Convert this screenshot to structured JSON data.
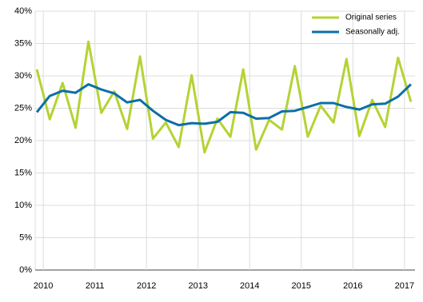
{
  "chart_data": {
    "type": "line",
    "categories": [
      "2010",
      null,
      null,
      null,
      "2011",
      null,
      null,
      null,
      "2012",
      null,
      null,
      null,
      "2013",
      null,
      null,
      null,
      "2014",
      null,
      null,
      null,
      "2015",
      null,
      null,
      null,
      "2016",
      null,
      null,
      null,
      "2017",
      null
    ],
    "series": [
      {
        "name": "Original series",
        "color": "#b4d334",
        "values": [
          31,
          23.3,
          28.9,
          22,
          35.3,
          24.3,
          27.6,
          21.8,
          33,
          20.3,
          22.8,
          19,
          30.1,
          18.2,
          23.4,
          20.6,
          31,
          18.6,
          23.2,
          21.7,
          31.5,
          20.6,
          25.4,
          22.8,
          32.6,
          20.7,
          26.3,
          22.1,
          32.8,
          26
        ]
      },
      {
        "name": "Seasonally adj.",
        "color": "#0a6fa8",
        "values": [
          24.4,
          26.9,
          27.7,
          27.4,
          28.7,
          27.9,
          27.3,
          25.9,
          26.3,
          24.6,
          23.2,
          22.4,
          22.7,
          22.6,
          22.9,
          24.4,
          24.3,
          23.4,
          23.5,
          24.5,
          24.6,
          25.2,
          25.8,
          25.8,
          25.2,
          24.8,
          25.6,
          25.7,
          26.8,
          28.7
        ]
      }
    ],
    "ylim": [
      0,
      40
    ],
    "yticks": [
      {
        "value": 0,
        "label": "0%"
      },
      {
        "value": 5,
        "label": "5%"
      },
      {
        "value": 10,
        "label": "10%"
      },
      {
        "value": 15,
        "label": "15%"
      },
      {
        "value": 20,
        "label": "20%"
      },
      {
        "value": 25,
        "label": "25%"
      },
      {
        "value": 30,
        "label": "30%"
      },
      {
        "value": 35,
        "label": "35%"
      },
      {
        "value": 40,
        "label": "40%"
      }
    ],
    "grid": true,
    "legend": "top-right"
  }
}
